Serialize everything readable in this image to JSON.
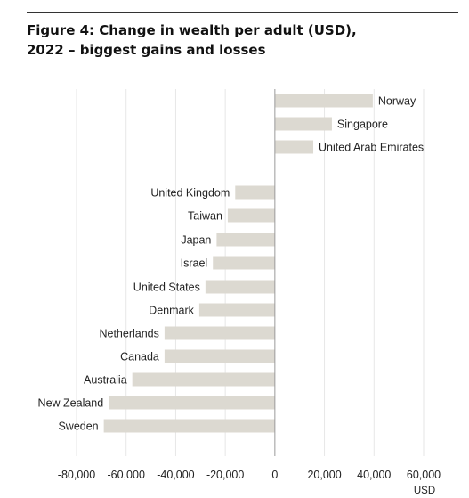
{
  "figure": {
    "title_line1": "Figure 4: Change in wealth per adult (USD),",
    "title_line2": "2022 – biggest gains and losses"
  },
  "chart_data": {
    "type": "bar",
    "orientation": "horizontal",
    "categories": [
      "Norway",
      "Singapore",
      "United Arab Emirates",
      "United Kingdom",
      "Taiwan",
      "Japan",
      "Israel",
      "United States",
      "Denmark",
      "Netherlands",
      "Canada",
      "Australia",
      "New Zealand",
      "Sweden"
    ],
    "values": [
      39500,
      23000,
      15500,
      -16000,
      -19000,
      -23500,
      -25000,
      -28000,
      -30500,
      -44500,
      -44500,
      -57500,
      -67000,
      -69000
    ],
    "xlim": [
      -80000,
      60000
    ],
    "xticks": [
      -80000,
      -60000,
      -40000,
      -20000,
      0,
      20000,
      40000,
      60000
    ],
    "xtick_labels": [
      "-80,000",
      "-60,000",
      "-40,000",
      "-20,000",
      "0",
      "20,000",
      "40,000",
      "60,000"
    ],
    "xlabel": "USD",
    "ylabel": "",
    "grid": "vertical",
    "legend": "none",
    "bar_color": "#dcd9d1",
    "grid_color": "#e6e6e6",
    "axis_color": "#9a9a9a"
  }
}
